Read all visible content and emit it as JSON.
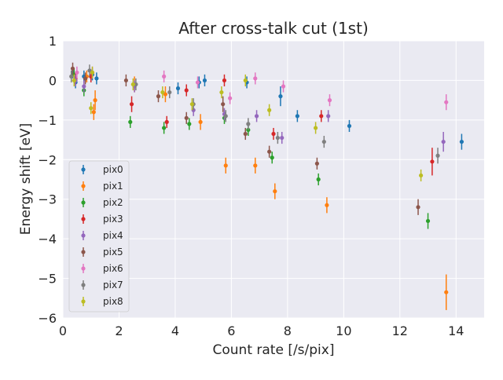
{
  "chart_data": {
    "type": "scatter",
    "title": "After cross-talk cut (1st)",
    "xlabel": "Count rate [/s/pix]",
    "ylabel": "Energy shift [eV]",
    "xlim": [
      0,
      15
    ],
    "ylim": [
      -6,
      1
    ],
    "xticks": [
      0,
      2,
      4,
      6,
      8,
      10,
      12,
      14
    ],
    "yticks": [
      1,
      0,
      -1,
      -2,
      -3,
      -4,
      -5,
      -6
    ],
    "legend_position": "lower-left",
    "error_bars": true,
    "series": [
      {
        "name": "pix0",
        "color": "#1f77b4",
        "points": [
          [
            0.35,
            0.2,
            0.15
          ],
          [
            0.45,
            -0.05,
            0.15
          ],
          [
            0.75,
            0.1,
            0.15
          ],
          [
            1.05,
            0.15,
            0.15
          ],
          [
            1.2,
            0.05,
            0.15
          ],
          [
            4.1,
            -0.2,
            0.15
          ],
          [
            4.85,
            -0.05,
            0.15
          ],
          [
            5.05,
            0,
            0.15
          ],
          [
            6.55,
            -0.05,
            0.15
          ],
          [
            7.75,
            -0.4,
            0.25
          ],
          [
            8.35,
            -0.9,
            0.15
          ],
          [
            10.2,
            -1.15,
            0.15
          ],
          [
            14.2,
            -1.55,
            0.2
          ]
        ]
      },
      {
        "name": "pix1",
        "color": "#ff7f0e",
        "points": [
          [
            0.85,
            0.1,
            0.15
          ],
          [
            1.1,
            -0.8,
            0.2
          ],
          [
            1.15,
            -0.5,
            0.25
          ],
          [
            2.55,
            -0.1,
            0.2
          ],
          [
            3.65,
            -0.35,
            0.2
          ],
          [
            4.9,
            -1.05,
            0.2
          ],
          [
            5.8,
            -2.15,
            0.2
          ],
          [
            6.85,
            -2.15,
            0.2
          ],
          [
            7.55,
            -2.8,
            0.2
          ],
          [
            9.4,
            -3.15,
            0.2
          ],
          [
            13.65,
            -5.35,
            0.45
          ]
        ]
      },
      {
        "name": "pix2",
        "color": "#2ca02c",
        "points": [
          [
            0.4,
            0.15,
            0.15
          ],
          [
            0.75,
            -0.25,
            0.15
          ],
          [
            2.4,
            -1.05,
            0.15
          ],
          [
            3.6,
            -1.2,
            0.15
          ],
          [
            4.5,
            -1.1,
            0.15
          ],
          [
            5.75,
            -0.95,
            0.15
          ],
          [
            6.6,
            -1.25,
            0.15
          ],
          [
            7.45,
            -1.95,
            0.15
          ],
          [
            9.1,
            -2.5,
            0.15
          ],
          [
            13.0,
            -3.55,
            0.2
          ]
        ]
      },
      {
        "name": "pix3",
        "color": "#d62728",
        "points": [
          [
            0.45,
            0.05,
            0.15
          ],
          [
            1.0,
            0.1,
            0.15
          ],
          [
            2.45,
            -0.6,
            0.2
          ],
          [
            3.7,
            -1.05,
            0.15
          ],
          [
            4.4,
            -0.25,
            0.15
          ],
          [
            5.75,
            0,
            0.15
          ],
          [
            7.5,
            -1.35,
            0.15
          ],
          [
            9.2,
            -0.9,
            0.15
          ],
          [
            13.15,
            -2.05,
            0.35
          ]
        ]
      },
      {
        "name": "pix4",
        "color": "#9467bd",
        "points": [
          [
            0.45,
            0,
            0.15
          ],
          [
            0.75,
            -0.15,
            0.15
          ],
          [
            2.55,
            -0.15,
            0.15
          ],
          [
            4.65,
            -0.75,
            0.15
          ],
          [
            5.75,
            -0.85,
            0.15
          ],
          [
            6.9,
            -0.9,
            0.15
          ],
          [
            7.8,
            -1.45,
            0.15
          ],
          [
            9.45,
            -0.9,
            0.15
          ],
          [
            13.55,
            -1.55,
            0.25
          ]
        ]
      },
      {
        "name": "pix5",
        "color": "#8c564b",
        "points": [
          [
            0.35,
            0.3,
            0.15
          ],
          [
            0.8,
            0.05,
            0.15
          ],
          [
            2.25,
            0,
            0.15
          ],
          [
            3.4,
            -0.4,
            0.15
          ],
          [
            4.4,
            -0.95,
            0.15
          ],
          [
            5.7,
            -0.6,
            0.2
          ],
          [
            6.5,
            -1.35,
            0.15
          ],
          [
            7.35,
            -1.8,
            0.15
          ],
          [
            9.05,
            -2.1,
            0.15
          ],
          [
            12.65,
            -3.2,
            0.2
          ]
        ]
      },
      {
        "name": "pix6",
        "color": "#e377c2",
        "points": [
          [
            0.5,
            0.2,
            0.15
          ],
          [
            1.05,
            0.2,
            0.15
          ],
          [
            3.6,
            0.1,
            0.15
          ],
          [
            4.8,
            -0.05,
            0.15
          ],
          [
            5.95,
            -0.45,
            0.15
          ],
          [
            6.85,
            0.05,
            0.15
          ],
          [
            7.85,
            -0.15,
            0.15
          ],
          [
            9.5,
            -0.5,
            0.15
          ],
          [
            13.65,
            -0.55,
            0.2
          ]
        ]
      },
      {
        "name": "pix7",
        "color": "#7f7f7f",
        "points": [
          [
            0.3,
            0.1,
            0.15
          ],
          [
            0.95,
            0.25,
            0.15
          ],
          [
            2.6,
            -0.1,
            0.15
          ],
          [
            3.8,
            -0.3,
            0.15
          ],
          [
            4.65,
            -0.6,
            0.15
          ],
          [
            5.8,
            -0.9,
            0.15
          ],
          [
            6.6,
            -1.1,
            0.15
          ],
          [
            7.65,
            -1.45,
            0.15
          ],
          [
            9.3,
            -1.55,
            0.15
          ],
          [
            13.35,
            -1.9,
            0.2
          ]
        ]
      },
      {
        "name": "pix8",
        "color": "#bcbd22",
        "points": [
          [
            0.4,
            0,
            0.15
          ],
          [
            1.0,
            -0.7,
            0.15
          ],
          [
            1.05,
            0.2,
            0.15
          ],
          [
            2.5,
            -0.1,
            0.15
          ],
          [
            3.55,
            -0.3,
            0.15
          ],
          [
            4.6,
            -0.6,
            0.15
          ],
          [
            5.65,
            -0.3,
            0.15
          ],
          [
            6.5,
            0,
            0.15
          ],
          [
            7.35,
            -0.75,
            0.15
          ],
          [
            9.0,
            -1.2,
            0.15
          ],
          [
            12.75,
            -2.4,
            0.15
          ]
        ]
      }
    ]
  }
}
